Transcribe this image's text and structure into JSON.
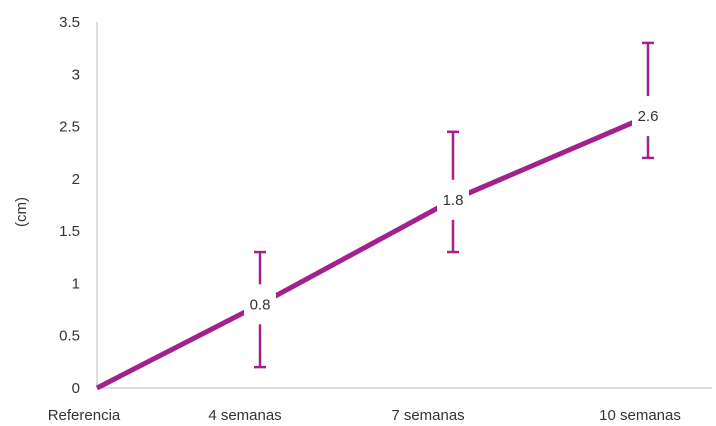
{
  "chart_data": {
    "type": "line",
    "title": "",
    "xlabel": "",
    "ylabel": "(cm)",
    "categories": [
      "Referencia",
      "4 semanas",
      "7 semanas",
      "10 semanas"
    ],
    "series": [
      {
        "values": [
          0,
          0.8,
          1.8,
          2.6
        ],
        "error_low": [
          null,
          0.2,
          1.3,
          2.2
        ],
        "error_high": [
          null,
          1.3,
          2.45,
          3.3
        ],
        "data_labels": [
          "",
          "0.8",
          "1.8",
          "2.6"
        ],
        "color": "#a3218e"
      }
    ],
    "yticks": [
      "0",
      "0.5",
      "1",
      "1.5",
      "2",
      "2.5",
      "3",
      "3.5"
    ],
    "ylim": [
      0,
      3.5
    ],
    "grid": false,
    "legend": "none"
  }
}
